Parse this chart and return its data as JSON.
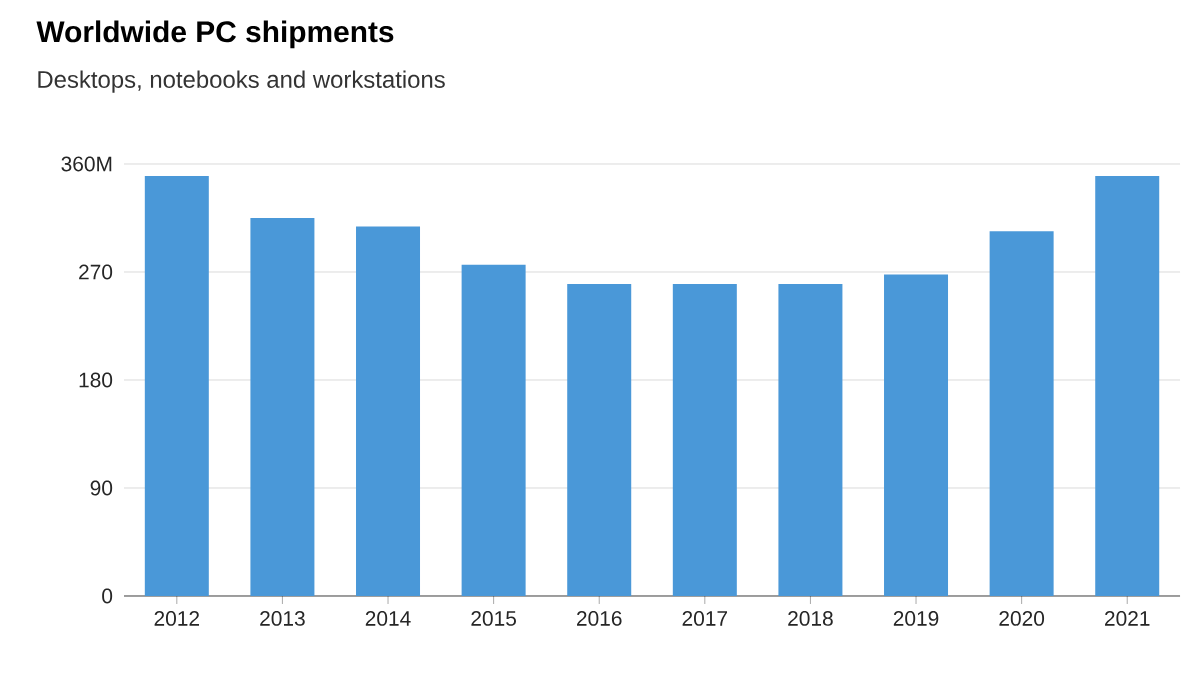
{
  "chart_data": {
    "type": "bar",
    "title": "Worldwide PC shipments",
    "subtitle": "Desktops, notebooks and workstations",
    "categories": [
      "2012",
      "2013",
      "2014",
      "2015",
      "2016",
      "2017",
      "2018",
      "2019",
      "2020",
      "2021"
    ],
    "values": [
      350,
      315,
      308,
      276,
      260,
      260,
      260,
      268,
      304,
      350
    ],
    "color": "#4a98d8",
    "ylim": [
      0,
      360
    ],
    "yticks": [
      0,
      90,
      180,
      270,
      {
        "value": 360,
        "label": "360M"
      }
    ],
    "grid": "y"
  }
}
